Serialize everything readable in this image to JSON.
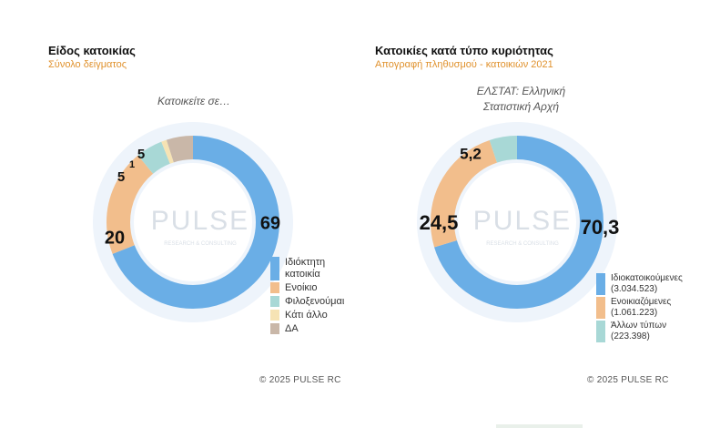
{
  "chart_data": [
    {
      "type": "donut",
      "title": "Είδος κατοικίας",
      "subtitle": "Σύνολο δείγματος",
      "note": "Κατοικείτε σε…",
      "watermark": "PULSE",
      "watermark_sub": "RESEARCH & CONSULTING",
      "categories": [
        "Ιδιόκτητη κατοικία",
        "Ενοίκιο",
        "Φιλοξενούμαι",
        "Κάτι άλλο",
        "ΔΑ"
      ],
      "values": [
        69,
        20,
        5,
        1,
        5
      ],
      "value_labels": [
        "69",
        "20",
        "5",
        "1",
        "5"
      ],
      "colors": [
        "#6aaee6",
        "#f2be8c",
        "#a8d8d6",
        "#f6e3b4",
        "#c9b7a8"
      ],
      "copyright": "©  2025  PULSE RC"
    },
    {
      "type": "donut",
      "title": "Κατοικίες κατά τύπο κυριότητας",
      "subtitle": "Απογραφή πληθυσμού - κατοικιών 2021",
      "note": "ΕΛΣΤΑΤ: Ελληνική Στατιστική Αρχή",
      "watermark": "PULSE",
      "watermark_sub": "RESEARCH & CONSULTING",
      "categories": [
        "Ιδιοκατοικούμενες (3.034.523)",
        "Ενοικιαζόμενες (1.061.223)",
        "Άλλων τύπων (223.398)"
      ],
      "values": [
        70.3,
        24.5,
        5.2
      ],
      "value_labels": [
        "70,3",
        "24,5",
        "5,2"
      ],
      "colors": [
        "#6aaee6",
        "#f2be8c",
        "#a8d8d6"
      ],
      "copyright": "©  2025  PULSE RC"
    }
  ]
}
